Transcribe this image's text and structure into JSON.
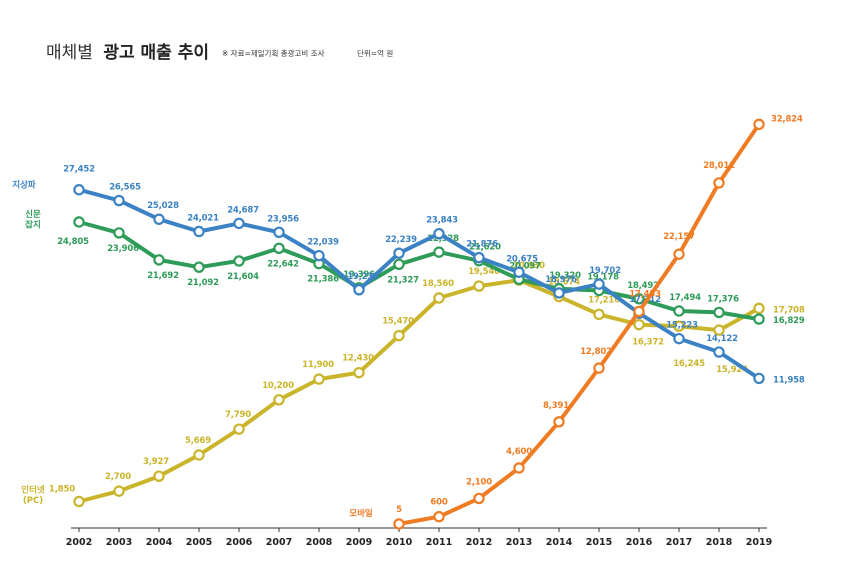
{
  "title_prefix": "매체별",
  "title_main": "광고 매출 추이",
  "source_note": "※ 자료=제일기획 총광고비 조사",
  "unit_note": "단위=억 원",
  "chart_data": {
    "type": "line",
    "title": "매체별 광고 매출 추이",
    "xlabel": "",
    "ylabel": "억 원",
    "ylim": [
      0,
      34000
    ],
    "grid": false,
    "categories": [
      "2002",
      "2003",
      "2004",
      "2005",
      "2006",
      "2007",
      "2008",
      "2009",
      "2010",
      "2011",
      "2012",
      "2013",
      "2014",
      "2015",
      "2016",
      "2017",
      "2018",
      "2019"
    ],
    "series": [
      {
        "name": "지상파",
        "name_lines": [
          "지상파"
        ],
        "color": "#3b82c4",
        "values": [
          27452,
          26565,
          25028,
          24021,
          24687,
          23956,
          22039,
          19233,
          22239,
          23843,
          21876,
          20675,
          18976,
          19702,
          17312,
          15223,
          14122,
          11958
        ]
      },
      {
        "name": "신문 잡지",
        "name_lines": [
          "신문",
          "잡지"
        ],
        "color": "#2e9b58",
        "values": [
          24805,
          23906,
          21692,
          21092,
          21604,
          22642,
          21386,
          19396,
          21327,
          22328,
          21620,
          20097,
          19320,
          19178,
          18492,
          17494,
          17376,
          16829
        ]
      },
      {
        "name": "인터넷 (PC)",
        "name_lines": [
          "인터넷",
          "(PC)"
        ],
        "color": "#c9b42a",
        "values": [
          1850,
          2700,
          3927,
          5669,
          7790,
          10200,
          11900,
          12430,
          15470,
          18560,
          19540,
          20030,
          18674,
          17216,
          16372,
          16245,
          15924,
          17708
        ]
      },
      {
        "name": "모바일",
        "name_lines": [
          "모바일"
        ],
        "color": "#ef7b23",
        "values": [
          null,
          null,
          null,
          null,
          null,
          null,
          null,
          null,
          5,
          600,
          2100,
          4600,
          8391,
          12802,
          17453,
          22157,
          28011,
          32824
        ]
      }
    ]
  }
}
